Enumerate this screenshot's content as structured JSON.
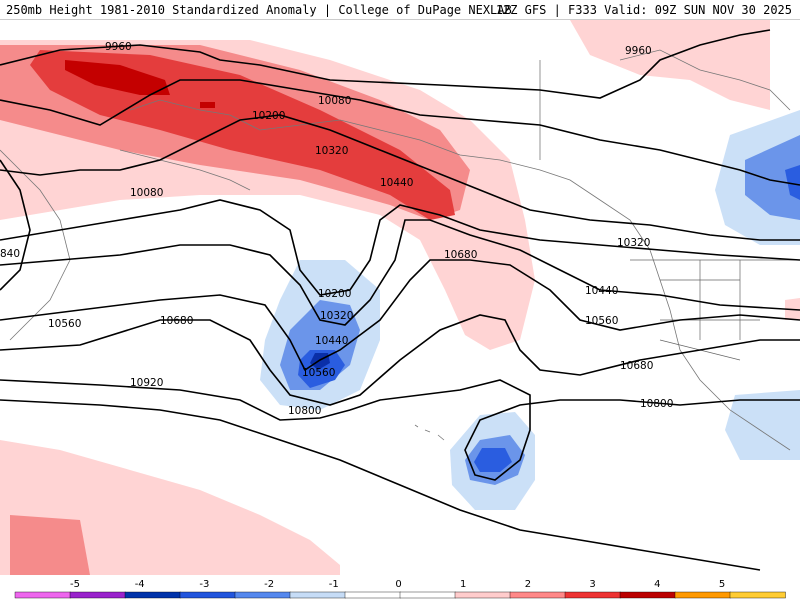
{
  "header": {
    "title": "250mb Height 1981-2010 Standardized Anomaly | College of DuPage NEXLAB",
    "run_info": "12Z GFS | F333 Valid: 09Z SUN NOV 30 2025"
  },
  "contour_labels": {
    "c9960a": "9960",
    "c9960b": "9960",
    "c10080a": "10080",
    "c10080b": "10080",
    "c10200a": "10200",
    "c10200b": "10200",
    "c10320a": "10320",
    "c10320b": "10320",
    "c10320c": "10320",
    "c10440a": "10440",
    "c10440b": "10440",
    "c10440c": "10440",
    "c10560a": "10560",
    "c10560b": "10560",
    "c10560c": "10560",
    "c10680a": "10680",
    "c10680b": "10680",
    "c10680c": "10680",
    "c10800a": "10800",
    "c10800b": "10800",
    "c10920a": "10920",
    "c840": "840"
  },
  "colorbar": {
    "ticks": [
      "-5",
      "-4",
      "-3",
      "-2",
      "-1",
      "0",
      "1",
      "2",
      "3",
      "4",
      "5"
    ],
    "colors": [
      "#ee66ee",
      "#9922cc",
      "#0033aa",
      "#2255dd",
      "#5588ee",
      "#c6dcf6",
      "#ffffff",
      "#ffffff",
      "#ffcccc",
      "#ff8888",
      "#ee3333",
      "#bb0000",
      "#ff9900",
      "#ffcc33"
    ]
  },
  "colors": {
    "pos1": "#ffd4d4",
    "pos2": "#f58b8b",
    "pos3": "#e43d3d",
    "pos4": "#c40000",
    "neg1": "#cbe0f7",
    "neg2": "#6b95ea",
    "neg3": "#2a5de0",
    "neg4": "#0a2fa8"
  }
}
